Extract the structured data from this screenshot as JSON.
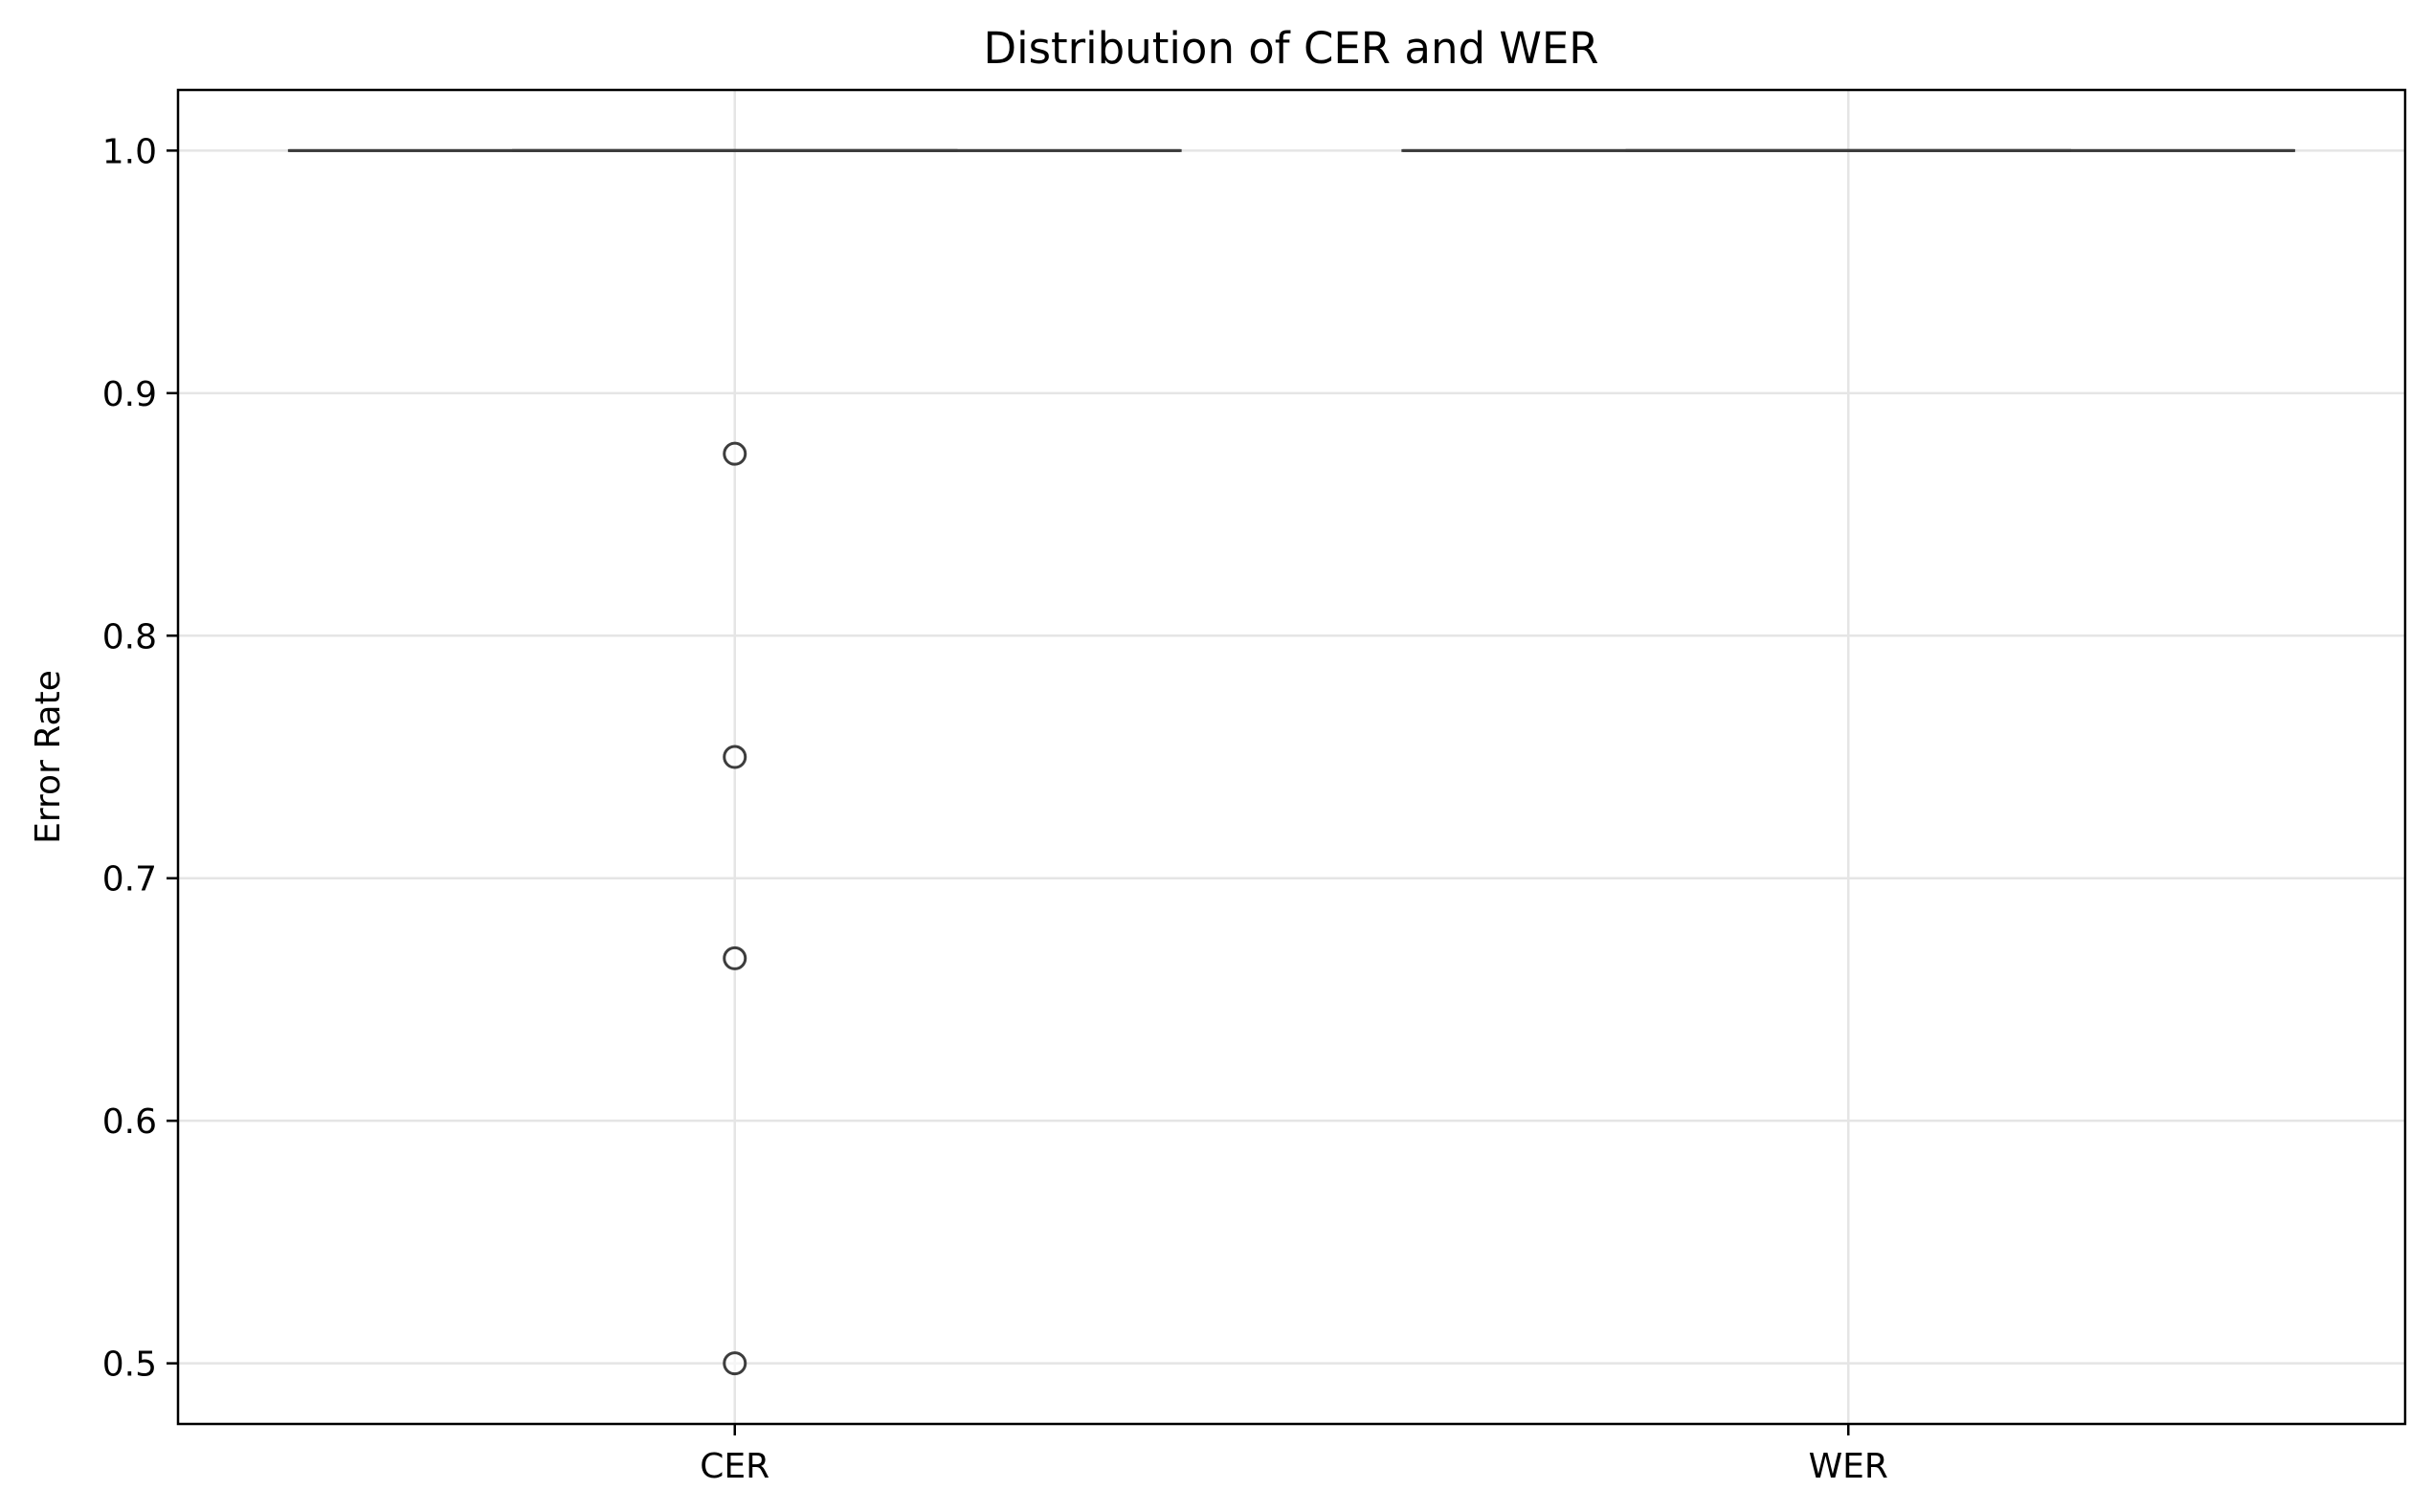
{
  "chart_data": {
    "type": "box",
    "title": "Distribution of CER and WER",
    "xlabel": "",
    "ylabel": "Error Rate",
    "categories": [
      "CER",
      "WER"
    ],
    "ylim": [
      0.475,
      1.025
    ],
    "yticks": [
      "0.5",
      "0.6",
      "0.7",
      "0.8",
      "0.9",
      "1.0"
    ],
    "ytick_values": [
      0.5,
      0.6,
      0.7,
      0.8,
      0.9,
      1.0
    ],
    "grid": true,
    "boxes": [
      {
        "name": "CER",
        "q1": 1.0,
        "median": 1.0,
        "q3": 1.0,
        "whisker_low": 1.0,
        "whisker_high": 1.0,
        "outliers": [
          0.875,
          0.75,
          0.667,
          0.5
        ]
      },
      {
        "name": "WER",
        "q1": 1.0,
        "median": 1.0,
        "q3": 1.0,
        "whisker_low": 1.0,
        "whisker_high": 1.0,
        "outliers": []
      }
    ],
    "colors": {
      "box_line": "#3d3d3d",
      "grid": "#e5e5e5",
      "axes": "#000000",
      "outlier_edge": "#3d3d3d"
    }
  }
}
